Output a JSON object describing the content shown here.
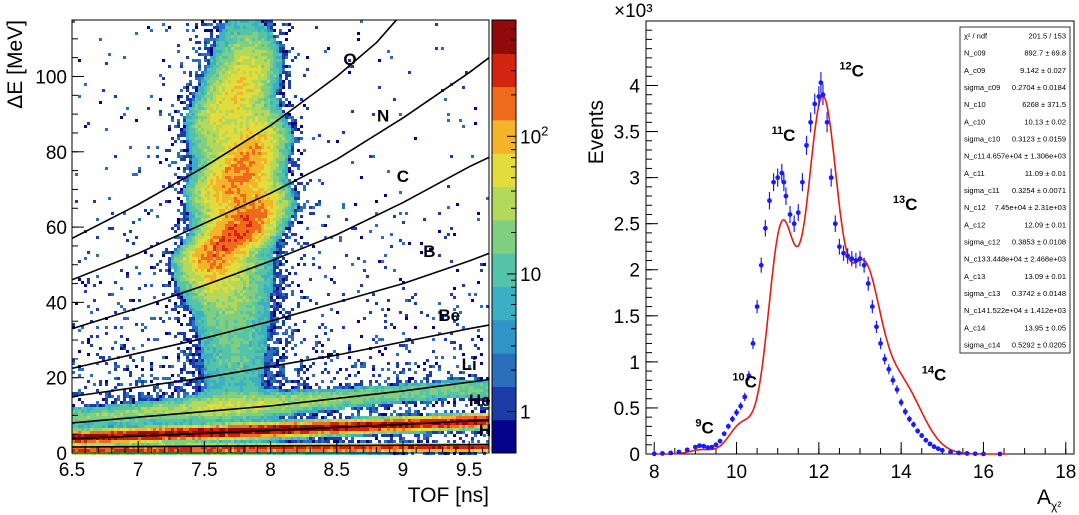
{
  "chart_data": [
    {
      "type": "heatmap",
      "title": "",
      "xlabel": "TOF [ns]",
      "ylabel": "ΔE [MeV]",
      "xlim": [
        6.5,
        9.65
      ],
      "ylim": [
        0,
        115
      ],
      "x_ticks": [
        "6.5",
        "7",
        "7.5",
        "8",
        "8.5",
        "9",
        "9.5"
      ],
      "y_ticks": [
        "0",
        "20",
        "40",
        "60",
        "80",
        "100"
      ],
      "colorbar": {
        "scale": "log",
        "min": 0.5,
        "max": 700,
        "tick_labels": [
          {
            "value": 1,
            "label": "1"
          },
          {
            "value": 10,
            "label": "10"
          },
          {
            "value": 100,
            "label": "10",
            "sup": "2"
          }
        ],
        "colors": [
          "#05038a",
          "#1c3ca8",
          "#2a6fbc",
          "#2f95c8",
          "#3bb0c4",
          "#55c3a8",
          "#80cf80",
          "#b3d85a",
          "#e2dc3c",
          "#f4b42a",
          "#ee6b1c",
          "#d32410",
          "#8f0a08"
        ]
      },
      "cut_lines": [
        {
          "label": "O",
          "label_at": [
            8.6,
            103
          ],
          "points": [
            [
              6.5,
              57
            ],
            [
              7.0,
              66
            ],
            [
              7.5,
              76
            ],
            [
              8.0,
              87
            ],
            [
              8.5,
              100
            ],
            [
              8.8,
              109
            ],
            [
              9.0,
              117
            ]
          ]
        },
        {
          "label": "N",
          "label_at": [
            8.85,
            88
          ],
          "points": [
            [
              6.5,
              46
            ],
            [
              7.0,
              53
            ],
            [
              7.5,
              61
            ],
            [
              8.0,
              69
            ],
            [
              8.5,
              78
            ],
            [
              9.0,
              89
            ],
            [
              9.5,
              101
            ],
            [
              9.65,
              105
            ]
          ]
        },
        {
          "label": "C",
          "label_at": [
            9.0,
            72
          ],
          "points": [
            [
              6.5,
              33
            ],
            [
              7.0,
              38.5
            ],
            [
              7.5,
              44.5
            ],
            [
              8.0,
              51
            ],
            [
              8.5,
              58
            ],
            [
              9.0,
              66.5
            ],
            [
              9.5,
              76
            ],
            [
              9.65,
              78.5
            ]
          ]
        },
        {
          "label": "B",
          "label_at": [
            9.2,
            52
          ],
          "points": [
            [
              6.5,
              22.5
            ],
            [
              7.0,
              26.5
            ],
            [
              7.5,
              30.5
            ],
            [
              8.0,
              35
            ],
            [
              8.5,
              40
            ],
            [
              9.0,
              45
            ],
            [
              9.5,
              51
            ],
            [
              9.65,
              53
            ]
          ]
        },
        {
          "label": "Be",
          "label_at": [
            9.35,
            35
          ],
          "points": [
            [
              6.5,
              15
            ],
            [
              7.0,
              17.5
            ],
            [
              7.5,
              20
            ],
            [
              8.0,
              23
            ],
            [
              8.5,
              26
            ],
            [
              9.0,
              29.5
            ],
            [
              9.5,
              33
            ],
            [
              9.65,
              34
            ]
          ]
        },
        {
          "label": "Li",
          "label_at": [
            9.5,
            22
          ],
          "points": [
            [
              6.5,
              8
            ],
            [
              7.0,
              9.5
            ],
            [
              7.5,
              11
            ],
            [
              8.0,
              12.5
            ],
            [
              8.5,
              14.5
            ],
            [
              9.0,
              16.5
            ],
            [
              9.5,
              18.8
            ],
            [
              9.65,
              19.5
            ]
          ]
        },
        {
          "label": "He",
          "label_at": [
            9.58,
            12.5
          ],
          "points": [
            [
              6.5,
              3.8
            ],
            [
              7.0,
              4.5
            ],
            [
              7.5,
              5.2
            ],
            [
              8.0,
              6
            ],
            [
              8.5,
              6.8
            ],
            [
              9.0,
              7.6
            ],
            [
              9.5,
              8.5
            ],
            [
              9.65,
              8.8
            ]
          ]
        },
        {
          "label": "H",
          "label_at": [
            9.62,
            4.5
          ],
          "points": [
            [
              6.5,
              1.6
            ],
            [
              7.5,
              1.8
            ],
            [
              8.5,
              2.0
            ],
            [
              9.65,
              2.2
            ]
          ]
        }
      ],
      "clusters": [
        {
          "name": "H",
          "points": [
            [
              6.5,
              0.9
            ],
            [
              7.0,
              1.0
            ],
            [
              7.5,
              1.1
            ],
            [
              8.0,
              1.2
            ],
            [
              8.5,
              1.3
            ],
            [
              9.0,
              1.4
            ],
            [
              9.5,
              1.5
            ],
            [
              9.65,
              1.55
            ]
          ],
          "peak_count": 300
        },
        {
          "name": "He",
          "points": [
            [
              6.5,
              4.0
            ],
            [
              7.0,
              4.7
            ],
            [
              7.5,
              5.4
            ],
            [
              8.0,
              6.1
            ],
            [
              8.5,
              6.8
            ],
            [
              9.0,
              7.6
            ],
            [
              9.5,
              8.3
            ],
            [
              9.65,
              8.6
            ]
          ],
          "peak_count": 650
        },
        {
          "name": "Li",
          "points": [
            [
              6.6,
              9.5
            ],
            [
              7.3,
              11.5
            ],
            [
              8.0,
              13
            ],
            [
              8.7,
              15
            ],
            [
              9.4,
              17
            ]
          ],
          "peak_count": 40
        },
        {
          "name": "C",
          "points": [
            [
              7.55,
              52
            ],
            [
              7.75,
              58
            ],
            [
              7.9,
              66
            ]
          ],
          "peak_count": 200
        },
        {
          "name": "N",
          "points": [
            [
              7.65,
              70
            ],
            [
              7.8,
              76
            ],
            [
              7.9,
              84
            ]
          ],
          "peak_count": 120
        },
        {
          "name": "O",
          "points": [
            [
              7.6,
              88
            ],
            [
              7.75,
              96
            ],
            [
              7.85,
              104
            ]
          ],
          "peak_count": 60
        }
      ]
    },
    {
      "type": "line",
      "title": "",
      "xlabel": "A",
      "xlabel_sub": "χ²",
      "ylabel": "Events",
      "y_multiplier": "×10³",
      "xlim": [
        7.8,
        18.2
      ],
      "ylim": [
        0,
        4.7
      ],
      "x_ticks": [
        "8",
        "10",
        "12",
        "14",
        "16",
        "18"
      ],
      "y_ticks": [
        "0",
        "0.5",
        "1",
        "1.5",
        "2",
        "2.5",
        "3",
        "3.5",
        "4"
      ],
      "fit": {
        "color": "#e8190f",
        "components": [
          {
            "name": "9C",
            "amp": 0.0893,
            "mean": 9.142,
            "sigma": 0.2704
          },
          {
            "name": "10C",
            "amp": 0.6268,
            "mean": 10.13,
            "sigma": 0.3123
          },
          {
            "name": "11C",
            "amp": 4.657,
            "mean": 11.09,
            "sigma": 0.3254
          },
          {
            "name": "12C",
            "amp": 7.45,
            "mean": 12.09,
            "sigma": 0.3853
          },
          {
            "name": "13C",
            "amp": 3.448,
            "mean": 13.09,
            "sigma": 0.3742
          },
          {
            "name": "14C",
            "amp": 1.522,
            "mean": 13.95,
            "sigma": 0.5292
          }
        ]
      },
      "series": [
        {
          "color": "#1a1aff",
          "x": [
            8.0,
            8.2,
            8.4,
            8.6,
            8.8,
            9.0,
            9.1,
            9.2,
            9.3,
            9.4,
            9.5,
            9.6,
            9.7,
            9.8,
            9.9,
            10.0,
            10.1,
            10.2,
            10.3,
            10.4,
            10.5,
            10.6,
            10.7,
            10.8,
            10.9,
            11.0,
            11.1,
            11.15,
            11.2,
            11.3,
            11.4,
            11.5,
            11.6,
            11.7,
            11.8,
            11.9,
            12.0,
            12.05,
            12.1,
            12.2,
            12.3,
            12.4,
            12.5,
            12.6,
            12.7,
            12.8,
            12.9,
            13.0,
            13.1,
            13.2,
            13.3,
            13.4,
            13.5,
            13.6,
            13.7,
            13.8,
            13.9,
            14.0,
            14.1,
            14.2,
            14.3,
            14.4,
            14.5,
            14.6,
            14.7,
            14.8,
            14.9,
            15.0,
            15.2,
            15.4,
            15.6,
            15.8,
            16.0,
            16.4
          ],
          "y": [
            0.002,
            0.006,
            0.012,
            0.022,
            0.045,
            0.075,
            0.09,
            0.085,
            0.07,
            0.075,
            0.1,
            0.14,
            0.22,
            0.3,
            0.38,
            0.45,
            0.52,
            0.62,
            0.85,
            1.2,
            1.6,
            2.05,
            2.45,
            2.75,
            2.95,
            3.0,
            3.05,
            2.95,
            2.8,
            2.6,
            2.5,
            2.62,
            2.95,
            3.35,
            3.6,
            3.8,
            3.88,
            4.03,
            3.9,
            3.6,
            3.0,
            2.5,
            2.25,
            2.18,
            2.15,
            2.12,
            2.1,
            2.12,
            2.05,
            1.85,
            1.6,
            1.38,
            1.2,
            1.03,
            0.92,
            0.8,
            0.7,
            0.56,
            0.46,
            0.38,
            0.32,
            0.25,
            0.2,
            0.15,
            0.11,
            0.08,
            0.058,
            0.04,
            0.022,
            0.012,
            0.006,
            0.003,
            0.001,
            0.0
          ]
        }
      ],
      "annotations": [
        {
          "label": "C",
          "sup": "9",
          "at": [
            9.0,
            0.22
          ]
        },
        {
          "label": "C",
          "sup": "10",
          "at": [
            9.9,
            0.72
          ]
        },
        {
          "label": "C",
          "sup": "11",
          "at": [
            10.85,
            3.4
          ]
        },
        {
          "label": "C",
          "sup": "12",
          "at": [
            12.5,
            4.1
          ]
        },
        {
          "label": "C",
          "sup": "13",
          "at": [
            13.8,
            2.65
          ]
        },
        {
          "label": "C",
          "sup": "14",
          "at": [
            14.5,
            0.8
          ]
        }
      ],
      "stats_box": [
        {
          "label": "χ² / ndf",
          "value": "201.5 / 153"
        },
        {
          "label": "N_c09",
          "value": "892.7 ± 69.8"
        },
        {
          "label": "A_c09",
          "value": "9.142 ± 0.027"
        },
        {
          "label": "sigma_c09",
          "value": "0.2704 ± 0.0184"
        },
        {
          "label": "N_c10",
          "value": "6268 ± 371.5"
        },
        {
          "label": "A_c10",
          "value": "10.13 ± 0.02"
        },
        {
          "label": "sigma_c10",
          "value": "0.3123 ± 0.0159"
        },
        {
          "label": "N_c11",
          "value": "4.657e+04 ± 1.306e+03"
        },
        {
          "label": "A_c11",
          "value": "11.09 ± 0.01"
        },
        {
          "label": "sigma_c11",
          "value": "0.3254 ± 0.0071"
        },
        {
          "label": "N_c12",
          "value": "7.45e+04 ± 2.31e+03"
        },
        {
          "label": "A_c12",
          "value": "12.09 ± 0.01"
        },
        {
          "label": "sigma_c12",
          "value": "0.3853 ± 0.0108"
        },
        {
          "label": "N_c13",
          "value": "3.448e+04 ± 2.468e+03"
        },
        {
          "label": "A_c13",
          "value": "13.09 ± 0.01"
        },
        {
          "label": "sigma_c13",
          "value": "0.3742 ± 0.0148"
        },
        {
          "label": "N_c14",
          "value": "1.522e+04 ± 1.412e+03"
        },
        {
          "label": "A_c14",
          "value": "13.95 ± 0.05"
        },
        {
          "label": "sigma_c14",
          "value": "0.5292 ± 0.0205"
        }
      ]
    }
  ]
}
